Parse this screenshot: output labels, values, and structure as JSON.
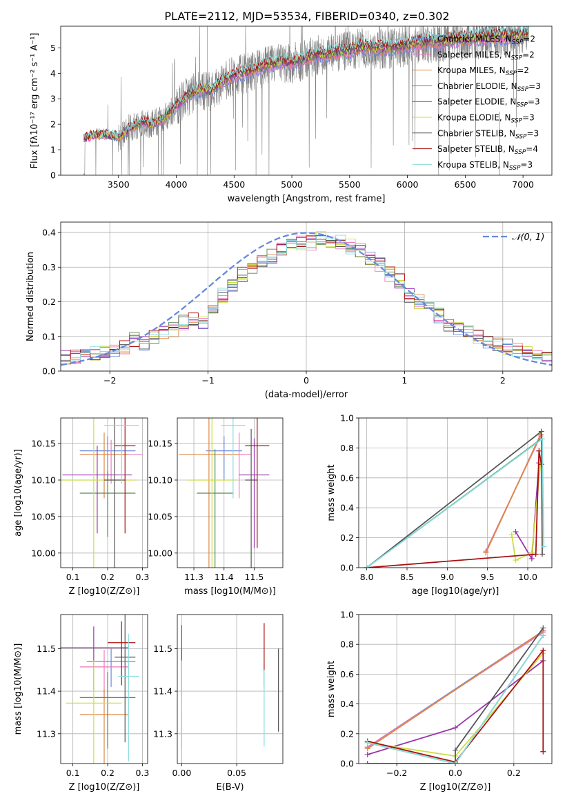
{
  "figure": {
    "title": "PLATE=2112, MJD=53534, FIBERID=0340, z=0.302"
  },
  "colors": {
    "chabrier_miles": "#6688dd",
    "salpeter_miles": "#ee77bb",
    "kroupa_miles": "#dd8844",
    "chabrier_elodie": "#558855",
    "salpeter_elodie": "#9933aa",
    "kroupa_elodie": "#ccdd44",
    "chabrier_stelib": "#555555",
    "salpeter_stelib": "#aa1111",
    "kroupa_stelib": "#88dddd",
    "data": "#808080",
    "normal": "#6688dd",
    "grid": "#b0b0b0"
  },
  "chart_data": [
    {
      "id": "spectrum",
      "type": "line",
      "title": "PLATE=2112, MJD=53534, FIBERID=0340, z=0.302",
      "xlabel": "wavelength [Angstrom, rest frame]",
      "ylabel": "Flux [fλ10⁻¹⁷ erg cm⁻² s⁻¹ A⁻¹]",
      "xlim": [
        3000,
        7250
      ],
      "ylim": [
        0,
        5.85
      ],
      "xticks": [
        3500,
        4000,
        4500,
        5000,
        5500,
        6000,
        6500,
        7000
      ],
      "yticks": [
        0,
        1,
        2,
        3,
        4,
        5
      ],
      "grid": false,
      "legend_position": "top-right",
      "legend": [
        "Chabrier MILES, N_SSP=2",
        "Salpeter MILES, N_SSP=2",
        "Kroupa MILES, N_SSP=2",
        "Chabrier ELODIE, N_SSP=3",
        "Salpeter ELODIE, N_SSP=3",
        "Kroupa ELODIE, N_SSP=3",
        "Chabrier STELIB, N_SSP=3",
        "Salpeter STELIB, N_SSP=4",
        "Kroupa STELIB, N_SSP=3"
      ],
      "continuum": {
        "x": [
          3200,
          3300,
          3400,
          3500,
          3600,
          3700,
          3800,
          3900,
          4000,
          4100,
          4200,
          4300,
          4400,
          4500,
          4600,
          4700,
          4800,
          4900,
          5000,
          5100,
          5200,
          5300,
          5400,
          5500,
          5600,
          5700,
          5800,
          5900,
          6000,
          6100,
          6200,
          6300,
          6400,
          6500,
          6600,
          6700,
          6800,
          6900,
          7000,
          7050
        ],
        "y": [
          1.45,
          1.6,
          1.58,
          1.5,
          1.85,
          2.1,
          2.0,
          2.25,
          2.7,
          3.1,
          3.35,
          3.3,
          3.65,
          3.9,
          4.0,
          4.15,
          4.3,
          4.4,
          4.4,
          4.5,
          4.7,
          4.7,
          4.8,
          4.85,
          5.0,
          4.95,
          4.95,
          5.0,
          5.05,
          5.15,
          5.2,
          5.2,
          5.3,
          5.3,
          5.35,
          5.35,
          5.4,
          5.4,
          5.45,
          5.45
        ]
      }
    },
    {
      "id": "residuals",
      "type": "line",
      "xlabel": "(data-model)/error",
      "ylabel": "Normed distribution",
      "xlim": [
        -2.5,
        2.5
      ],
      "ylim": [
        0,
        0.43
      ],
      "xticks": [
        -2,
        -1,
        0,
        1,
        2
      ],
      "yticks": [
        0.0,
        0.1,
        0.2,
        0.3,
        0.4
      ],
      "grid": true,
      "legend_position": "top-right",
      "legend": [
        "𝒩(0, 1)"
      ],
      "bin_width": 0.1,
      "base_hist": {
        "x": [
          -2.5,
          -2.4,
          -2.3,
          -2.2,
          -2.1,
          -2.0,
          -1.9,
          -1.8,
          -1.7,
          -1.6,
          -1.5,
          -1.4,
          -1.3,
          -1.2,
          -1.1,
          -1.0,
          -0.9,
          -0.8,
          -0.7,
          -0.6,
          -0.5,
          -0.4,
          -0.3,
          -0.2,
          -0.1,
          0.0,
          0.1,
          0.2,
          0.3,
          0.4,
          0.5,
          0.6,
          0.7,
          0.8,
          0.9,
          1.0,
          1.1,
          1.2,
          1.3,
          1.4,
          1.5,
          1.6,
          1.7,
          1.8,
          1.9,
          2.0,
          2.1,
          2.2,
          2.3,
          2.4
        ],
        "y": [
          0.04,
          0.04,
          0.05,
          0.05,
          0.05,
          0.06,
          0.07,
          0.09,
          0.08,
          0.1,
          0.11,
          0.12,
          0.14,
          0.15,
          0.14,
          0.18,
          0.22,
          0.25,
          0.28,
          0.3,
          0.32,
          0.33,
          0.35,
          0.36,
          0.37,
          0.37,
          0.38,
          0.37,
          0.37,
          0.36,
          0.35,
          0.33,
          0.31,
          0.28,
          0.26,
          0.22,
          0.2,
          0.18,
          0.16,
          0.13,
          0.12,
          0.11,
          0.1,
          0.08,
          0.08,
          0.07,
          0.06,
          0.05,
          0.05,
          0.04
        ]
      },
      "normal": {
        "mean": 0,
        "sigma": 1,
        "label": "𝒩(0, 1)"
      }
    },
    {
      "id": "age-vs-Z",
      "type": "scatter",
      "xlabel": "Z [log10(Z/Z⊙)]",
      "ylabel": "age [log10(age/yr)]",
      "xlim": [
        0.065,
        0.315
      ],
      "ylim": [
        9.98,
        10.185
      ],
      "xticks": [
        0.1,
        0.2,
        0.3
      ],
      "yticks": [
        10.0,
        10.05,
        10.1,
        10.15
      ],
      "grid": true,
      "points": [
        {
          "model": "chabrier_miles",
          "x": 0.2,
          "y": 10.14,
          "xerr": 0.08,
          "yerr": 0.02
        },
        {
          "model": "salpeter_miles",
          "x": 0.21,
          "y": 10.135,
          "xerr": 0.09,
          "yerr": 0.02
        },
        {
          "model": "kroupa_miles",
          "x": 0.19,
          "y": 10.135,
          "xerr": 0.07,
          "yerr": 0.03
        },
        {
          "model": "chabrier_elodie",
          "x": 0.2,
          "y": 10.082,
          "xerr": 0.08,
          "yerr": 0.03
        },
        {
          "model": "salpeter_elodie",
          "x": 0.17,
          "y": 10.107,
          "xerr": 0.1,
          "yerr": 0.04
        },
        {
          "model": "kroupa_elodie",
          "x": 0.16,
          "y": 10.1,
          "xerr": 0.12,
          "yerr": 0.11
        },
        {
          "model": "chabrier_stelib",
          "x": 0.22,
          "y": 10.1,
          "xerr": 0.03,
          "yerr": 0.09
        },
        {
          "model": "salpeter_stelib",
          "x": 0.25,
          "y": 10.147,
          "xerr": 0.03,
          "yerr": 0.06
        },
        {
          "model": "kroupa_stelib",
          "x": 0.24,
          "y": 10.175,
          "xerr": 0.05,
          "yerr": 0.04
        }
      ]
    },
    {
      "id": "age-vs-mass",
      "type": "scatter",
      "xlabel": "mass [log10(M/M⊙)]",
      "ylabel": "",
      "xlim": [
        11.245,
        11.595
      ],
      "ylim": [
        9.98,
        10.185
      ],
      "xticks": [
        11.3,
        11.4,
        11.5
      ],
      "yticks": [
        10.0,
        10.05,
        10.1,
        10.15
      ],
      "grid": true,
      "points": [
        {
          "model": "chabrier_miles",
          "x": 11.4,
          "y": 10.14,
          "xerr": 0.06,
          "yerr": 0.02
        },
        {
          "model": "salpeter_miles",
          "x": 11.45,
          "y": 10.135,
          "xerr": 0.04,
          "yerr": 0.03
        },
        {
          "model": "kroupa_miles",
          "x": 11.35,
          "y": 10.135,
          "xerr": 0.1,
          "yerr": 0.08
        },
        {
          "model": "chabrier_elodie",
          "x": 11.37,
          "y": 10.082,
          "xerr": 0.06,
          "yerr": 0.06
        },
        {
          "model": "salpeter_elodie",
          "x": 11.5,
          "y": 10.107,
          "xerr": 0.05,
          "yerr": 0.05
        },
        {
          "model": "kroupa_elodie",
          "x": 11.36,
          "y": 10.1,
          "xerr": 0.08,
          "yerr": 0.1
        },
        {
          "model": "chabrier_stelib",
          "x": 11.49,
          "y": 10.1,
          "xerr": 0.02,
          "yerr": 0.07
        },
        {
          "model": "salpeter_stelib",
          "x": 11.51,
          "y": 10.147,
          "xerr": 0.04,
          "yerr": 0.07
        },
        {
          "model": "kroupa_stelib",
          "x": 11.43,
          "y": 10.175,
          "xerr": 0.04,
          "yerr": 0.05
        }
      ]
    },
    {
      "id": "weight-vs-age",
      "type": "line",
      "xlabel": "age [log10(age/yr)]",
      "ylabel": "mass weight",
      "xlim": [
        7.9,
        10.3
      ],
      "ylim": [
        0,
        1.0
      ],
      "xticks": [
        8.0,
        8.5,
        9.0,
        9.5,
        10.0
      ],
      "yticks": [
        0.0,
        0.2,
        0.4,
        0.6,
        0.8,
        1.0
      ],
      "grid": true,
      "series": [
        {
          "model": "chabrier_miles",
          "x": [
            9.48,
            10.16
          ],
          "y": [
            0.1,
            0.89
          ]
        },
        {
          "model": "salpeter_miles",
          "x": [
            9.48,
            10.16
          ],
          "y": [
            0.11,
            0.88
          ]
        },
        {
          "model": "kroupa_miles",
          "x": [
            9.48,
            10.16
          ],
          "y": [
            0.1,
            0.89
          ]
        },
        {
          "model": "chabrier_elodie",
          "x": [
            8.0,
            10.17
          ],
          "y": [
            0.0,
            0.86
          ]
        },
        {
          "model": "salpeter_elodie",
          "x": [
            9.85,
            10.05,
            10.14
          ],
          "y": [
            0.24,
            0.06,
            0.7
          ]
        },
        {
          "model": "kroupa_elodie",
          "x": [
            9.8,
            9.85,
            10.05,
            10.16
          ],
          "y": [
            0.22,
            0.05,
            0.1,
            0.7
          ]
        },
        {
          "model": "chabrier_stelib",
          "x": [
            8.0,
            10.17,
            10.18
          ],
          "y": [
            0.0,
            0.91,
            0.09
          ]
        },
        {
          "model": "salpeter_stelib",
          "x": [
            8.0,
            10.1,
            10.14,
            10.17
          ],
          "y": [
            0.0,
            0.09,
            0.78,
            0.69
          ]
        },
        {
          "model": "kroupa_stelib",
          "x": [
            8.0,
            10.18,
            10.2
          ],
          "y": [
            0.0,
            0.86,
            0.14
          ]
        }
      ]
    },
    {
      "id": "mass-vs-Z",
      "type": "scatter",
      "xlabel": "Z [log10(Z/Z⊙)]",
      "ylabel": "mass [log10(M/M⊙)]",
      "xlim": [
        0.065,
        0.315
      ],
      "ylim": [
        11.23,
        11.58
      ],
      "xticks": [
        0.1,
        0.2,
        0.3
      ],
      "yticks": [
        11.3,
        11.4,
        11.5
      ],
      "grid": true,
      "points": [
        {
          "model": "chabrier_miles",
          "x": 0.21,
          "y": 11.47,
          "xerr": 0.07,
          "yerr": 0.03
        },
        {
          "model": "salpeter_miles",
          "x": 0.19,
          "y": 11.457,
          "xerr": 0.07,
          "yerr": 0.04
        },
        {
          "model": "kroupa_miles",
          "x": 0.19,
          "y": 11.345,
          "xerr": 0.07,
          "yerr": 0.06
        },
        {
          "model": "chabrier_elodie",
          "x": 0.2,
          "y": 11.385,
          "xerr": 0.08,
          "yerr": 0.06
        },
        {
          "model": "salpeter_elodie",
          "x": 0.16,
          "y": 11.502,
          "xerr": 0.1,
          "yerr": 0.05
        },
        {
          "model": "kroupa_elodie",
          "x": 0.16,
          "y": 11.372,
          "xerr": 0.08,
          "yerr": 0.1
        },
        {
          "model": "chabrier_stelib",
          "x": 0.25,
          "y": 11.48,
          "xerr": 0.03,
          "yerr": 0.1
        },
        {
          "model": "salpeter_stelib",
          "x": 0.24,
          "y": 11.514,
          "xerr": 0.04,
          "yerr": 0.05
        },
        {
          "model": "kroupa_stelib",
          "x": 0.26,
          "y": 11.435,
          "xerr": 0.03,
          "yerr": 0.1
        }
      ]
    },
    {
      "id": "mass-vs-EBV",
      "type": "scatter",
      "xlabel": "E(B-V)",
      "ylabel": "",
      "xlim": [
        -0.004,
        0.092
      ],
      "ylim": [
        11.23,
        11.58
      ],
      "xticks": [
        0.0,
        0.05
      ],
      "yticks": [
        11.3,
        11.4,
        11.5
      ],
      "grid": true,
      "points": [
        {
          "model": "chabrier_miles",
          "x": 0.0,
          "y": 11.47,
          "yerr": 0.03
        },
        {
          "model": "salpeter_miles",
          "x": 0.0,
          "y": 11.457,
          "yerr": 0.04
        },
        {
          "model": "kroupa_miles",
          "x": 0.0,
          "y": 11.3,
          "yerr": 0.05
        },
        {
          "model": "chabrier_elodie",
          "x": 0.0,
          "y": 11.385,
          "yerr": 0.06
        },
        {
          "model": "salpeter_elodie",
          "x": 0.0,
          "y": 11.5,
          "yerr": 0.055
        },
        {
          "model": "kroupa_elodie",
          "x": 0.0,
          "y": 11.372,
          "yerr": 0.1
        },
        {
          "model": "chabrier_stelib",
          "x": 0.088,
          "y": 11.435,
          "yerr": 0.065
        },
        {
          "model": "salpeter_stelib",
          "x": 0.075,
          "y": 11.51,
          "yerr": 0.05
        },
        {
          "model": "kroupa_stelib",
          "x": 0.075,
          "y": 11.39,
          "yerr": 0.06
        }
      ]
    },
    {
      "id": "weight-vs-Z",
      "type": "line",
      "xlabel": "Z [log10(Z/Z⊙)]",
      "ylabel": "mass weight",
      "xlim": [
        -0.33,
        0.33
      ],
      "ylim": [
        0,
        1.0
      ],
      "xticks": [
        -0.2,
        0.0,
        0.2
      ],
      "yticks": [
        0.0,
        0.2,
        0.4,
        0.6,
        0.8,
        1.0
      ],
      "grid": true,
      "series": [
        {
          "model": "chabrier_miles",
          "x": [
            -0.3,
            0.3
          ],
          "y": [
            0.11,
            0.89
          ]
        },
        {
          "model": "salpeter_miles",
          "x": [
            -0.3,
            0.3
          ],
          "y": [
            0.11,
            0.88
          ]
        },
        {
          "model": "kroupa_miles",
          "x": [
            -0.3,
            0.3
          ],
          "y": [
            0.1,
            0.89
          ]
        },
        {
          "model": "chabrier_elodie",
          "x": [
            -0.3,
            0.0,
            0.3
          ],
          "y": [
            0.14,
            0.0,
            0.86
          ]
        },
        {
          "model": "salpeter_elodie",
          "x": [
            -0.3,
            0.0,
            0.3
          ],
          "y": [
            0.06,
            0.24,
            0.69
          ]
        },
        {
          "model": "kroupa_elodie",
          "x": [
            -0.3,
            0.0,
            0.3
          ],
          "y": [
            0.14,
            0.05,
            0.74
          ]
        },
        {
          "model": "chabrier_stelib",
          "x": [
            -0.3,
            0.0,
            0.0,
            0.3
          ],
          "y": [
            0.0,
            0.0,
            0.09,
            0.91
          ]
        },
        {
          "model": "salpeter_stelib",
          "x": [
            -0.3,
            0.0,
            0.3,
            0.3
          ],
          "y": [
            0.15,
            0.01,
            0.76,
            0.08
          ]
        },
        {
          "model": "kroupa_stelib",
          "x": [
            -0.3,
            0.0,
            0.3
          ],
          "y": [
            0.14,
            0.0,
            0.86
          ]
        }
      ]
    }
  ]
}
